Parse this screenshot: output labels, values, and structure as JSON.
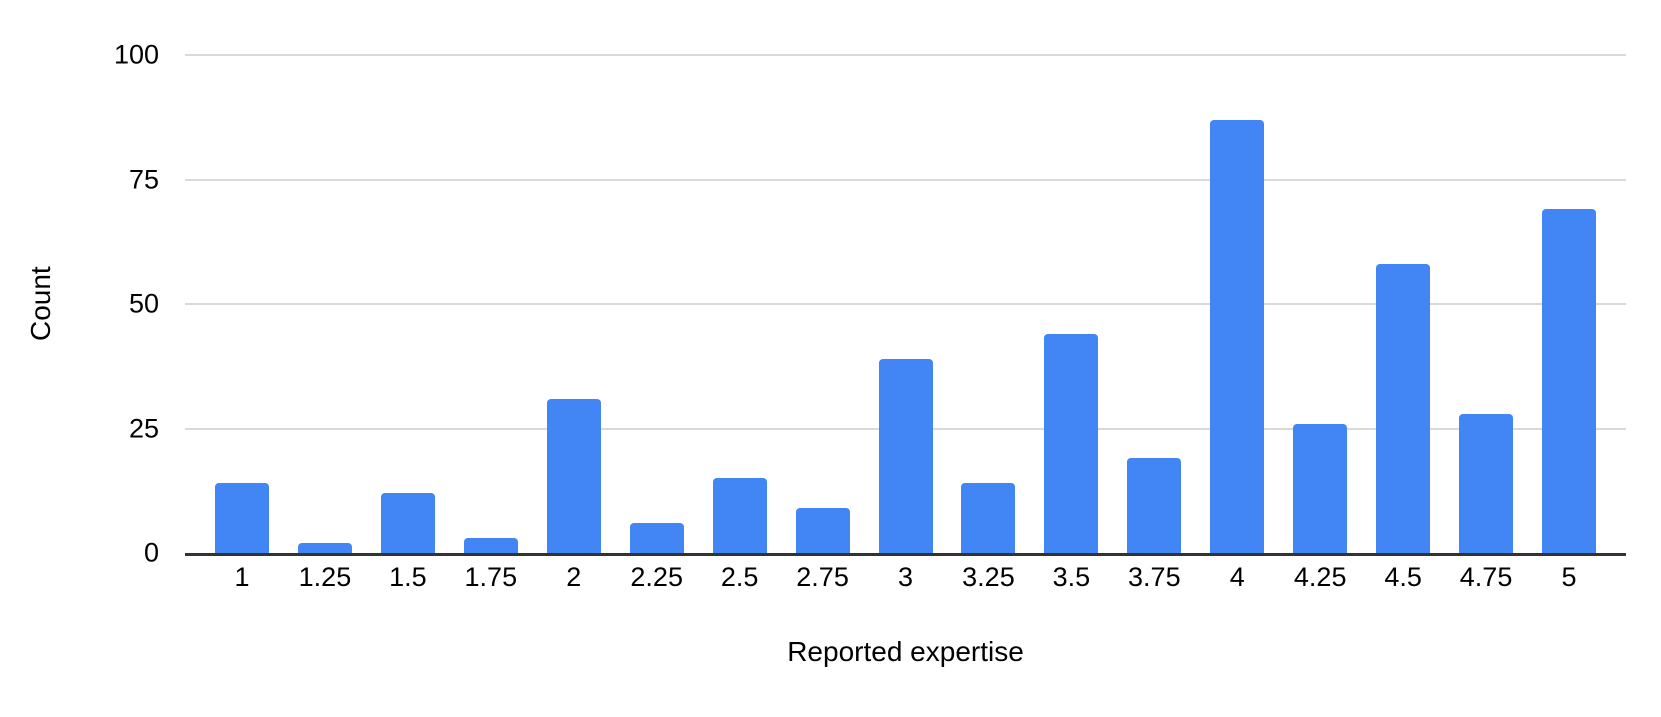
{
  "chart_data": {
    "type": "bar",
    "title": "",
    "xlabel": "Reported expertise",
    "ylabel": "Count",
    "categories": [
      "1",
      "1.25",
      "1.5",
      "1.75",
      "2",
      "2.25",
      "2.5",
      "2.75",
      "3",
      "3.25",
      "3.5",
      "3.75",
      "4",
      "4.25",
      "4.5",
      "4.75",
      "5"
    ],
    "values": [
      14,
      2,
      12,
      3,
      31,
      6,
      15,
      9,
      39,
      14,
      44,
      19,
      87,
      26,
      58,
      28,
      69
    ],
    "ylim": [
      0,
      100
    ],
    "yticks": [
      0,
      25,
      50,
      75,
      100
    ],
    "grid": "horizontal",
    "legend": "none",
    "colors": {
      "bar": "#4285f4",
      "gridline": "#d9d9d9",
      "axis_line": "#333333",
      "text": "#000000",
      "background": "#ffffff"
    }
  }
}
